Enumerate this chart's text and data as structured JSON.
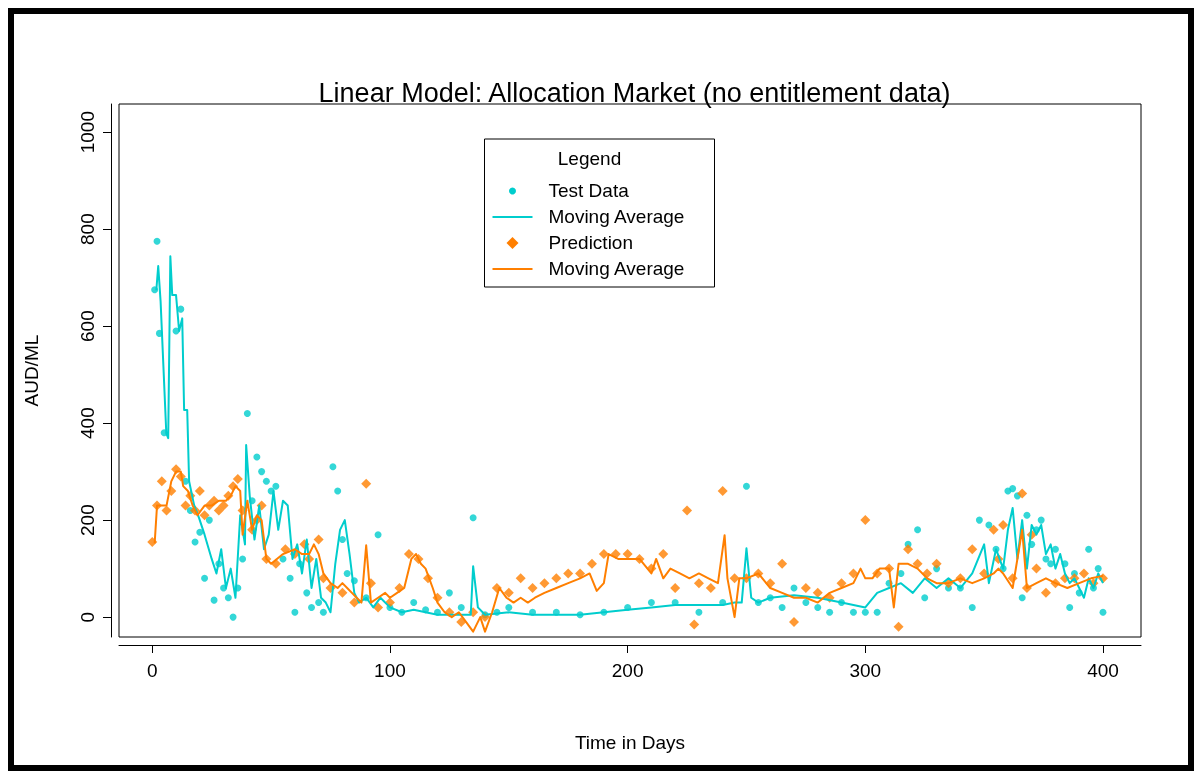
{
  "chart_data": {
    "type": "scatter",
    "title": "Linear Model: Allocation Market (no entitlement data)",
    "xlabel": "Time in Days",
    "ylabel": "AUD/ML",
    "legend_title": "Legend",
    "legend": "top",
    "grid": false,
    "xlim": [
      -14,
      416
    ],
    "xticks": [
      0,
      100,
      200,
      300,
      400
    ],
    "ylim": [
      -41,
      1058
    ],
    "yticks": [
      0,
      200,
      400,
      600,
      800,
      1000
    ],
    "series": [
      {
        "name": "Test Data",
        "marker": "circle",
        "color": "#00cdcd",
        "x": [
          1,
          2,
          3,
          5,
          10,
          12,
          14,
          16,
          18,
          20,
          22,
          24,
          26,
          28,
          30,
          32,
          34,
          36,
          38,
          40,
          42,
          44,
          46,
          48,
          50,
          52,
          55,
          58,
          60,
          62,
          65,
          67,
          70,
          72,
          76,
          78,
          80,
          82,
          85,
          90,
          95,
          100,
          105,
          110,
          115,
          120,
          125,
          130,
          135,
          140,
          145,
          150,
          160,
          170,
          180,
          190,
          200,
          210,
          220,
          230,
          240,
          250,
          255,
          260,
          265,
          270,
          275,
          280,
          285,
          290,
          295,
          300,
          305,
          310,
          315,
          318,
          322,
          325,
          330,
          335,
          340,
          345,
          348,
          352,
          355,
          358,
          360,
          362,
          364,
          366,
          368,
          370,
          372,
          374,
          376,
          378,
          380,
          384,
          386,
          388,
          390,
          394,
          396,
          398,
          400
        ],
        "values": [
          675,
          775,
          585,
          380,
          590,
          635,
          280,
          220,
          155,
          175,
          80,
          200,
          35,
          110,
          60,
          40,
          0,
          60,
          120,
          420,
          240,
          330,
          300,
          280,
          260,
          270,
          120,
          80,
          10,
          110,
          50,
          20,
          30,
          10,
          310,
          260,
          160,
          90,
          75,
          40,
          170,
          20,
          10,
          30,
          15,
          10,
          50,
          20,
          205,
          5,
          10,
          20,
          10,
          10,
          5,
          10,
          20,
          30,
          30,
          10,
          30,
          270,
          30,
          40,
          20,
          60,
          30,
          20,
          10,
          30,
          10,
          10,
          10,
          70,
          90,
          150,
          180,
          40,
          100,
          60,
          60,
          20,
          200,
          190,
          140,
          100,
          260,
          265,
          250,
          40,
          210,
          150,
          180,
          200,
          120,
          110,
          140,
          110,
          20,
          90,
          50,
          140,
          60,
          100,
          10
        ]
      },
      {
        "name": "Moving Average",
        "type": "line",
        "marker": "none",
        "color": "#00cdcd",
        "x": [
          1.7,
          2.5,
          3.5,
          5.9,
          6.7,
          7.6,
          8.4,
          10,
          11.3,
          12.6,
          13.4,
          14.7,
          15.5,
          17.6,
          19.7,
          22,
          25,
          27,
          29,
          31,
          33,
          35,
          37,
          39,
          39.5,
          41,
          43,
          45,
          47,
          49,
          51,
          53,
          55,
          57,
          59,
          61,
          63,
          65,
          67,
          69,
          71,
          73,
          75,
          77,
          79,
          81,
          83,
          85,
          87,
          90,
          93,
          96,
          100,
          105,
          110,
          115,
          120,
          125,
          130,
          134,
          135,
          137,
          140,
          150,
          160,
          170,
          180,
          190,
          200,
          210,
          220,
          230,
          240,
          245,
          248,
          250,
          252,
          255,
          260,
          270,
          280,
          290,
          300,
          305,
          310,
          315,
          320,
          325,
          330,
          335,
          340,
          345,
          350,
          352,
          355,
          358,
          360,
          362,
          364,
          366,
          368,
          370,
          372,
          374,
          376,
          378,
          380,
          382,
          384,
          386,
          388,
          390,
          392,
          394,
          396,
          398,
          400
        ],
        "values": [
          674,
          724,
          651,
          379,
          369,
          744,
          664,
          664,
          590,
          616,
          427,
          427,
          280,
          231,
          204,
          170,
          120,
          90,
          140,
          60,
          100,
          40,
          210,
          150,
          355,
          250,
          160,
          230,
          140,
          170,
          260,
          180,
          240,
          230,
          120,
          150,
          90,
          160,
          60,
          120,
          40,
          30,
          10,
          110,
          180,
          200,
          130,
          50,
          30,
          40,
          20,
          40,
          20,
          10,
          15,
          10,
          5,
          5,
          5,
          5,
          105,
          20,
          5,
          10,
          5,
          5,
          5,
          10,
          15,
          20,
          25,
          25,
          25,
          30,
          30,
          142,
          40,
          30,
          40,
          45,
          40,
          30,
          20,
          50,
          60,
          70,
          50,
          80,
          60,
          80,
          60,
          90,
          150,
          70,
          140,
          100,
          180,
          225,
          120,
          200,
          100,
          190,
          170,
          190,
          130,
          150,
          100,
          130,
          90,
          70,
          80,
          60,
          40,
          80,
          60,
          90,
          70
        ]
      },
      {
        "name": "Prediction",
        "marker": "diamond",
        "color": "#ff7f00",
        "x": [
          0,
          2,
          4,
          6,
          8,
          10,
          12,
          14,
          16,
          18,
          20,
          22,
          24,
          26,
          28,
          30,
          32,
          34,
          36,
          38,
          42,
          44,
          46,
          48,
          52,
          56,
          60,
          64,
          66,
          70,
          72,
          75,
          80,
          85,
          90,
          92,
          95,
          100,
          104,
          108,
          112,
          116,
          120,
          125,
          130,
          135,
          140,
          145,
          150,
          155,
          160,
          165,
          170,
          175,
          180,
          185,
          190,
          195,
          200,
          205,
          210,
          215,
          220,
          225,
          228,
          230,
          235,
          240,
          245,
          250,
          255,
          260,
          265,
          270,
          275,
          280,
          285,
          290,
          295,
          300,
          305,
          310,
          314,
          318,
          322,
          326,
          330,
          335,
          340,
          345,
          350,
          354,
          356,
          358,
          362,
          366,
          368,
          370,
          372,
          376,
          380,
          384,
          388,
          392,
          396,
          400
        ],
        "values": [
          155,
          230,
          280,
          220,
          260,
          305,
          290,
          230,
          250,
          220,
          260,
          210,
          230,
          240,
          220,
          230,
          250,
          270,
          285,
          220,
          180,
          200,
          230,
          120,
          110,
          140,
          130,
          150,
          120,
          160,
          80,
          60,
          50,
          30,
          275,
          70,
          20,
          30,
          60,
          130,
          120,
          80,
          40,
          10,
          -10,
          10,
          0,
          60,
          50,
          80,
          60,
          70,
          80,
          90,
          90,
          110,
          130,
          130,
          130,
          120,
          100,
          130,
          60,
          220,
          -15,
          70,
          60,
          260,
          80,
          80,
          90,
          70,
          110,
          -10,
          60,
          50,
          40,
          70,
          90,
          200,
          90,
          100,
          -20,
          140,
          110,
          90,
          110,
          70,
          80,
          140,
          90,
          180,
          120,
          190,
          80,
          255,
          60,
          170,
          100,
          50,
          70,
          80,
          80,
          90,
          70,
          80
        ]
      },
      {
        "name": "Moving Average",
        "type": "line",
        "marker": "none",
        "color": "#ff7f00",
        "x": [
          1,
          2,
          4,
          6,
          8,
          10,
          12,
          13,
          15,
          17,
          19,
          22,
          25,
          28,
          31,
          33,
          35,
          37,
          38,
          40,
          42,
          44,
          46,
          48,
          50,
          55,
          60,
          63,
          66,
          68,
          70,
          72,
          75,
          78,
          80,
          82,
          84,
          86,
          88,
          90,
          92,
          95,
          98,
          100,
          103,
          106,
          109,
          111,
          113,
          115,
          118,
          120,
          123,
          126,
          129,
          132,
          135,
          138,
          140,
          143,
          146,
          149,
          152,
          155,
          158,
          161,
          165,
          170,
          175,
          180,
          184,
          187,
          190,
          192,
          196,
          200,
          205,
          210,
          212,
          215,
          218,
          222,
          226,
          230,
          234,
          238,
          240.8,
          242,
          245,
          247,
          250,
          255,
          260,
          265,
          270,
          275,
          280,
          285,
          290,
          295,
          298,
          300,
          303,
          306,
          310,
          312,
          314,
          318,
          322,
          326,
          330,
          335,
          340,
          345,
          350,
          354,
          356,
          358,
          362,
          366,
          368,
          372,
          376,
          380,
          385,
          390,
          395,
          400
        ],
        "values": [
          152,
          230,
          230,
          230,
          280,
          300,
          300,
          270,
          260,
          230,
          210,
          230,
          230,
          240,
          240,
          250,
          270,
          260,
          170,
          240,
          180,
          210,
          200,
          120,
          110,
          130,
          140,
          130,
          130,
          150,
          130,
          90,
          70,
          60,
          70,
          60,
          50,
          40,
          30,
          148,
          30,
          40,
          50,
          40,
          50,
          60,
          120,
          130,
          110,
          100,
          60,
          30,
          10,
          0,
          10,
          -10,
          -30,
          0,
          -30,
          10,
          60,
          40,
          30,
          40,
          30,
          40,
          50,
          60,
          70,
          80,
          90,
          54,
          70,
          130,
          120,
          120,
          120,
          90,
          120,
          80,
          100,
          90,
          80,
          90,
          80,
          70,
          169,
          80,
          0,
          80,
          80,
          90,
          60,
          50,
          40,
          40,
          30,
          50,
          60,
          70,
          100,
          80,
          80,
          100,
          100,
          20,
          110,
          110,
          100,
          80,
          70,
          70,
          80,
          70,
          80,
          90,
          100,
          90,
          60,
          180,
          60,
          70,
          80,
          70,
          60,
          70,
          80,
          85
        ]
      }
    ]
  }
}
